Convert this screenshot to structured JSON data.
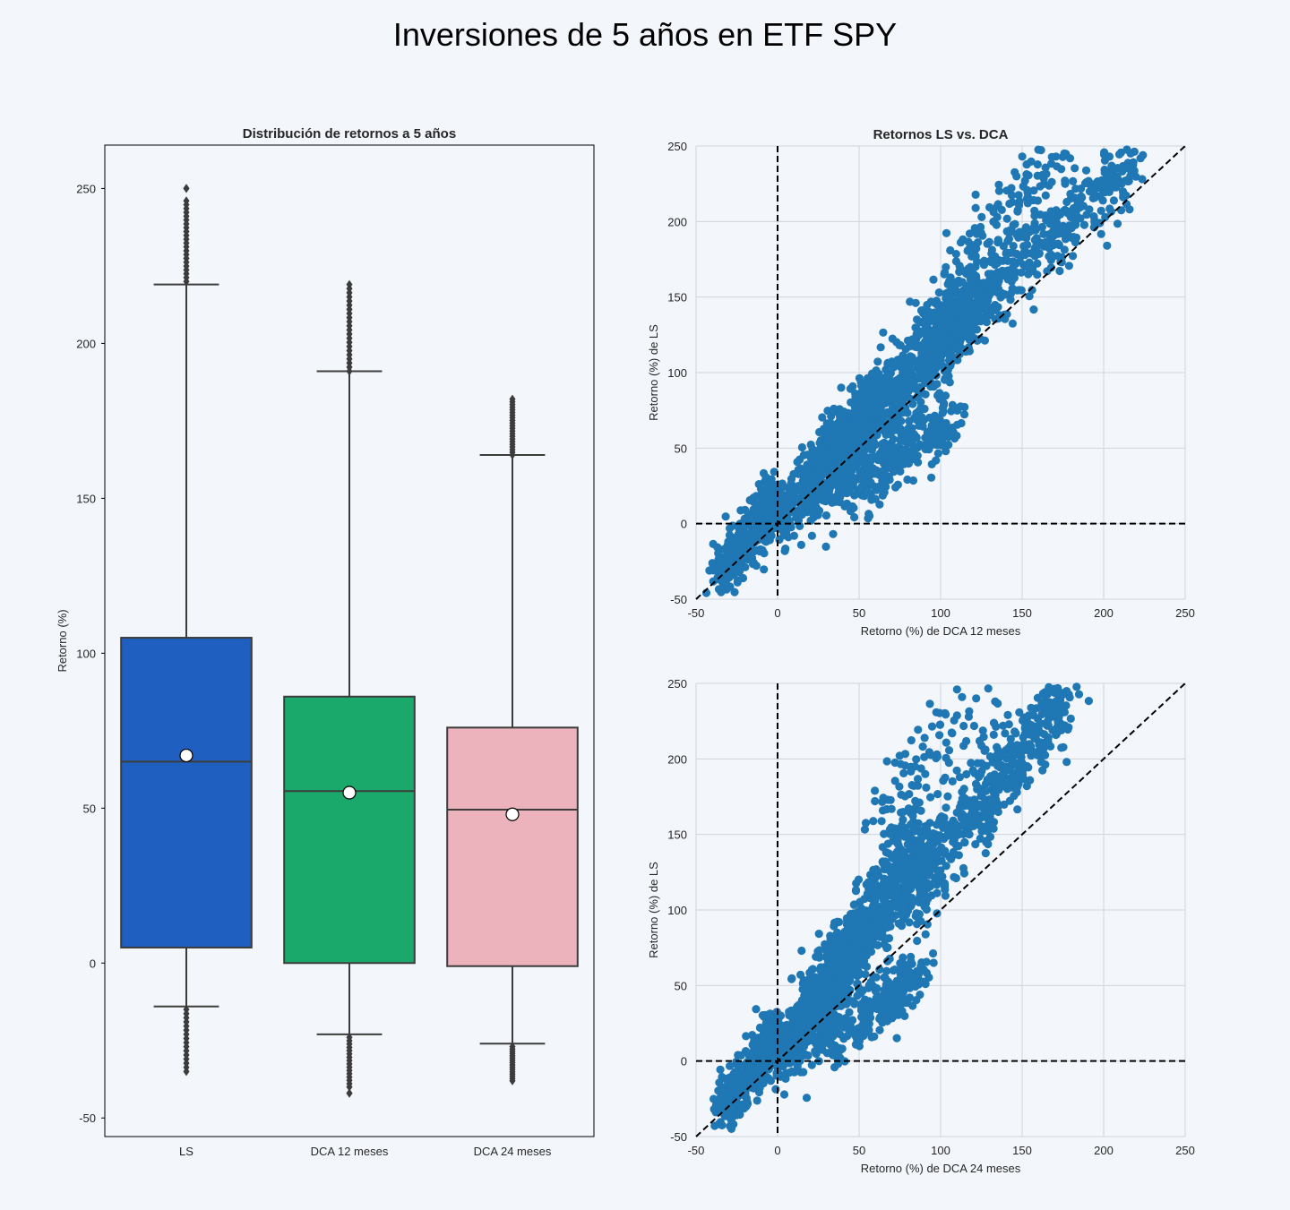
{
  "figure_title": "Inversiones de 5 años en ETF SPY",
  "colors": {
    "background": "#f3f6fb",
    "box_LS": "#1f5fbf",
    "box_DCA12": "#1aa96a",
    "box_DCA24": "#ecb3bc",
    "scatter": "#1f77b4",
    "box_edge": "#3c3c3c"
  },
  "chart_data": [
    {
      "type": "box",
      "title": "Distribución de retornos a 5 años",
      "xlabel": "",
      "ylabel": "Retorno (%)",
      "ylim": [
        -56,
        264
      ],
      "yticks": [
        -50,
        0,
        50,
        100,
        150,
        200,
        250
      ],
      "categories": [
        "LS",
        "DCA 12 meses",
        "DCA 24 meses"
      ],
      "boxes": [
        {
          "name": "LS",
          "q1": 5,
          "median": 65,
          "q3": 105,
          "whisker_low": -14,
          "whisker_high": 219,
          "mean": 67,
          "outliers_low": [
            -15,
            -35
          ],
          "outliers_high": [
            220,
            246
          ],
          "max": 250
        },
        {
          "name": "DCA 12 meses",
          "q1": 0,
          "median": 55.5,
          "q3": 86,
          "whisker_low": -23,
          "whisker_high": 191,
          "mean": 55,
          "outliers_low": [
            -24,
            -40
          ],
          "outliers_high": [
            191,
            219
          ],
          "min": -42
        },
        {
          "name": "DCA 24 meses",
          "q1": -1,
          "median": 49.5,
          "q3": 76,
          "whisker_low": -26,
          "whisker_high": 164,
          "mean": 48,
          "outliers_low": [
            -27,
            -38
          ],
          "outliers_high": [
            164,
            182
          ]
        }
      ]
    },
    {
      "type": "scatter",
      "title": "Retornos LS vs. DCA",
      "xlabel": "Retorno (%) de DCA 12 meses",
      "ylabel": "Retorno (%) de LS",
      "xlim": [
        -50,
        250
      ],
      "ylim": [
        -50,
        250
      ],
      "xticks": [
        -50,
        0,
        50,
        100,
        150,
        200,
        250
      ],
      "yticks": [
        -50,
        0,
        50,
        100,
        150,
        200,
        250
      ],
      "grid": true,
      "reference_lines": [
        "x=0",
        "y=0",
        "y=x"
      ],
      "clusters": [
        {
          "x": [
            -35,
            0
          ],
          "y": [
            -35,
            20
          ],
          "slope": 1.0,
          "spread": 9,
          "n": 380
        },
        {
          "x": [
            0,
            60
          ],
          "y": [
            0,
            80
          ],
          "slope": 1.3,
          "spread": 10,
          "n": 420
        },
        {
          "x": [
            20,
            120
          ],
          "y": [
            20,
            150
          ],
          "slope": 1.25,
          "spread": 14,
          "n": 900
        },
        {
          "x": [
            40,
            110
          ],
          "y": [
            20,
            70
          ],
          "slope": 0.7,
          "spread": 9,
          "n": 260
        },
        {
          "x": [
            90,
            220
          ],
          "y": [
            110,
            245
          ],
          "slope": 1.05,
          "spread": 12,
          "n": 520
        },
        {
          "x": [
            110,
            170
          ],
          "y": [
            170,
            240
          ],
          "slope": 1.0,
          "spread": 16,
          "n": 120
        }
      ]
    },
    {
      "type": "scatter",
      "title": "",
      "xlabel": "Retorno (%) de DCA 24 meses",
      "ylabel": "Retorno (%) de LS",
      "xlim": [
        -50,
        250
      ],
      "ylim": [
        -50,
        250
      ],
      "xticks": [
        -50,
        0,
        50,
        100,
        150,
        200,
        250
      ],
      "yticks": [
        -50,
        0,
        50,
        100,
        150,
        200,
        250
      ],
      "grid": true,
      "reference_lines": [
        "x=0",
        "y=0",
        "y=x"
      ],
      "clusters": [
        {
          "x": [
            -35,
            0
          ],
          "y": [
            -35,
            20
          ],
          "slope": 1.0,
          "spread": 9,
          "n": 380
        },
        {
          "x": [
            0,
            50
          ],
          "y": [
            0,
            80
          ],
          "slope": 1.5,
          "spread": 10,
          "n": 420
        },
        {
          "x": [
            15,
            90
          ],
          "y": [
            20,
            150
          ],
          "slope": 1.5,
          "spread": 14,
          "n": 900
        },
        {
          "x": [
            30,
            90
          ],
          "y": [
            10,
            60
          ],
          "slope": 0.8,
          "spread": 9,
          "n": 240
        },
        {
          "x": [
            80,
            180
          ],
          "y": [
            110,
            245
          ],
          "slope": 1.3,
          "spread": 13,
          "n": 520
        },
        {
          "x": [
            60,
            140
          ],
          "y": [
            170,
            240
          ],
          "slope": 0.9,
          "spread": 16,
          "n": 110
        }
      ]
    }
  ]
}
